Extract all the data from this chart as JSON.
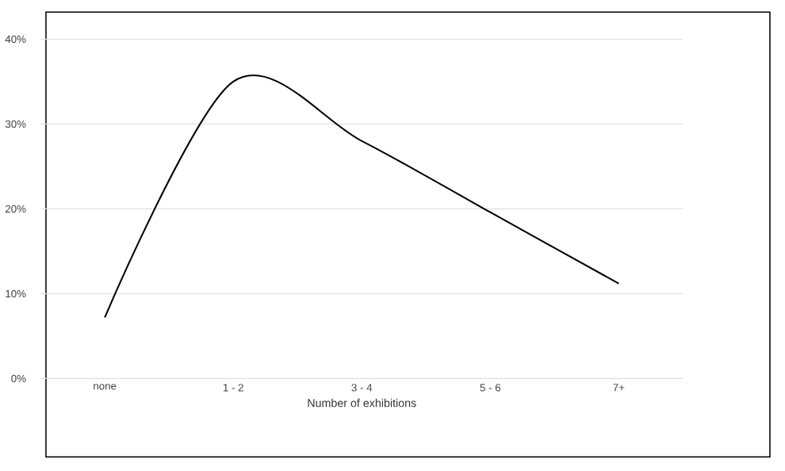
{
  "chart_data": {
    "type": "line",
    "xlabel": "Number of exhibitions",
    "categories": [
      "none",
      "1 - 2",
      "3 - 4",
      "5 - 6",
      "7+"
    ],
    "values": [
      7.2,
      35,
      28,
      19.6,
      11.2
    ],
    "color": "#000000",
    "marker": "none",
    "ylim": [
      0,
      40
    ],
    "yticks": [
      {
        "value": 0,
        "label": "0%"
      },
      {
        "value": 10,
        "label": "10%"
      },
      {
        "value": 20,
        "label": "20%"
      },
      {
        "value": 30,
        "label": "30%"
      },
      {
        "value": 40,
        "label": "40%"
      }
    ],
    "grid": "y"
  }
}
